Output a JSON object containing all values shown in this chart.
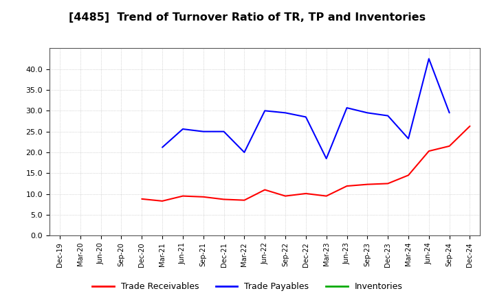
{
  "title": "[4485]  Trend of Turnover Ratio of TR, TP and Inventories",
  "title_fontsize": 11.5,
  "x_labels": [
    "Dec-19",
    "Mar-20",
    "Jun-20",
    "Sep-20",
    "Dec-20",
    "Mar-21",
    "Jun-21",
    "Sep-21",
    "Dec-21",
    "Mar-22",
    "Jun-22",
    "Sep-22",
    "Dec-22",
    "Mar-23",
    "Jun-23",
    "Sep-23",
    "Dec-23",
    "Mar-24",
    "Jun-24",
    "Sep-24",
    "Dec-24"
  ],
  "trade_receivables": [
    null,
    null,
    null,
    null,
    8.8,
    8.3,
    9.5,
    9.3,
    8.7,
    8.5,
    11.0,
    9.5,
    10.1,
    9.5,
    11.9,
    12.3,
    12.5,
    14.5,
    20.3,
    21.5,
    26.3
  ],
  "trade_payables": [
    null,
    null,
    null,
    null,
    null,
    21.2,
    25.6,
    25.0,
    25.0,
    20.0,
    30.0,
    29.5,
    28.5,
    18.5,
    30.7,
    29.5,
    28.8,
    23.3,
    42.5,
    29.5,
    null
  ],
  "inventories": [
    null,
    null,
    null,
    null,
    null,
    null,
    null,
    null,
    null,
    null,
    null,
    null,
    null,
    null,
    null,
    null,
    null,
    null,
    null,
    null,
    null
  ],
  "ylim": [
    0.0,
    45.0
  ],
  "yticks": [
    0.0,
    5.0,
    10.0,
    15.0,
    20.0,
    25.0,
    30.0,
    35.0,
    40.0
  ],
  "line_color_tr": "#ff0000",
  "line_color_tp": "#0000ff",
  "line_color_inv": "#00aa00",
  "line_width": 1.5,
  "legend_labels": [
    "Trade Receivables",
    "Trade Payables",
    "Inventories"
  ],
  "background_color": "#ffffff",
  "plot_bg_color": "#ffffff",
  "grid_color": "#999999",
  "grid_style": ":"
}
